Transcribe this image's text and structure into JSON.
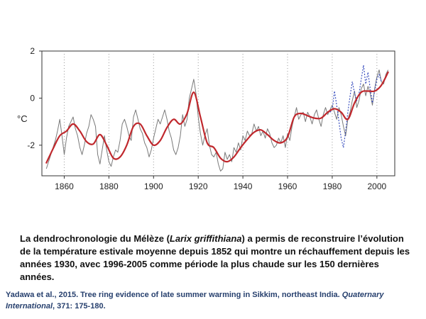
{
  "chart_data": {
    "type": "line",
    "ylabel": "°C",
    "xlim": [
      1850,
      2008
    ],
    "ylim": [
      -3.3,
      2.0
    ],
    "x_ticks": [
      1860,
      1880,
      1900,
      1920,
      1940,
      1960,
      1980,
      2000
    ],
    "x_tick_labels": [
      "1860",
      "1880",
      "1900",
      "1920",
      "1940",
      "1960",
      "1980",
      "2000"
    ],
    "y_ticks": [
      2,
      0,
      -2
    ],
    "y_tick_labels": [
      "2",
      "0",
      "-2"
    ],
    "grid": "vertical dotted",
    "legend": "none",
    "series": [
      {
        "style": "thin-gray",
        "color": "#7a7a7a",
        "x": [
          1852,
          1853,
          1854,
          1855,
          1856,
          1857,
          1858,
          1859,
          1860,
          1861,
          1862,
          1863,
          1864,
          1865,
          1866,
          1867,
          1868,
          1869,
          1870,
          1871,
          1872,
          1873,
          1874,
          1875,
          1876,
          1877,
          1878,
          1879,
          1880,
          1881,
          1882,
          1883,
          1884,
          1885,
          1886,
          1887,
          1888,
          1889,
          1890,
          1891,
          1892,
          1893,
          1894,
          1895,
          1896,
          1897,
          1898,
          1899,
          1900,
          1901,
          1902,
          1903,
          1904,
          1905,
          1906,
          1907,
          1908,
          1909,
          1910,
          1911,
          1912,
          1913,
          1914,
          1915,
          1916,
          1917,
          1918,
          1919,
          1920,
          1921,
          1922,
          1923,
          1924,
          1925,
          1926,
          1927,
          1928,
          1929,
          1930,
          1931,
          1932,
          1933,
          1934,
          1935,
          1936,
          1937,
          1938,
          1939,
          1940,
          1941,
          1942,
          1943,
          1944,
          1945,
          1946,
          1947,
          1948,
          1949,
          1950,
          1951,
          1952,
          1953,
          1954,
          1955,
          1956,
          1957,
          1958,
          1959,
          1960,
          1961,
          1962,
          1963,
          1964,
          1965,
          1966,
          1967,
          1968,
          1969,
          1970,
          1971,
          1972,
          1973,
          1974,
          1975,
          1976,
          1977,
          1978,
          1979,
          1980,
          1981,
          1982,
          1983,
          1984,
          1985,
          1986,
          1987,
          1988,
          1989,
          1990,
          1991,
          1992,
          1993,
          1994,
          1995,
          1996,
          1997,
          1998,
          1999,
          2000,
          2001,
          2002,
          2003,
          2004,
          2005
        ],
        "values": [
          -3.0,
          -2.7,
          -2.4,
          -2.1,
          -1.8,
          -1.4,
          -0.9,
          -1.6,
          -2.4,
          -1.7,
          -1.2,
          -1.0,
          -0.8,
          -1.3,
          -1.6,
          -2.1,
          -2.4,
          -2.0,
          -1.5,
          -1.2,
          -0.7,
          -0.9,
          -1.2,
          -2.4,
          -2.8,
          -2.2,
          -1.6,
          -2.2,
          -2.7,
          -2.9,
          -2.5,
          -2.2,
          -2.3,
          -1.8,
          -1.1,
          -0.9,
          -1.2,
          -1.6,
          -1.8,
          -0.8,
          -0.5,
          -0.9,
          -1.3,
          -1.5,
          -1.9,
          -2.1,
          -2.5,
          -2.2,
          -1.7,
          -1.3,
          -0.9,
          -1.1,
          -0.8,
          -0.5,
          -0.9,
          -1.4,
          -1.7,
          -2.2,
          -2.4,
          -2.1,
          -1.6,
          -0.7,
          -1.2,
          -0.9,
          0.0,
          0.4,
          0.8,
          0.2,
          -0.8,
          -1.5,
          -2.0,
          -1.6,
          -1.3,
          -2.0,
          -2.4,
          -2.5,
          -2.3,
          -2.8,
          -3.1,
          -3.0,
          -2.3,
          -2.6,
          -2.4,
          -2.7,
          -2.1,
          -2.3,
          -1.9,
          -2.2,
          -1.6,
          -1.8,
          -1.4,
          -1.6,
          -1.5,
          -1.1,
          -1.4,
          -1.2,
          -1.6,
          -1.4,
          -1.7,
          -1.3,
          -1.5,
          -1.9,
          -2.1,
          -2.0,
          -1.7,
          -1.9,
          -1.6,
          -2.1,
          -1.5,
          -1.8,
          -1.2,
          -0.8,
          -0.4,
          -0.9,
          -0.7,
          -0.6,
          -1.0,
          -0.6,
          -0.8,
          -1.1,
          -0.7,
          -0.5,
          -0.9,
          -1.2,
          -0.7,
          -0.4,
          -0.7,
          -0.5,
          -0.3,
          -0.6,
          -0.9,
          -0.4,
          -0.7,
          -1.2,
          -1.6,
          -0.9,
          -0.6,
          -0.1,
          0.3,
          -0.4,
          -0.1,
          0.4,
          0.6,
          0.1,
          0.5,
          0.2,
          -0.3,
          0.4,
          0.9,
          1.2,
          0.7,
          0.6,
          1.0,
          1.2
        ],
        "name": ""
      },
      {
        "style": "dotted-blue",
        "color": "#3a4fbf",
        "x": [
          1979,
          1980,
          1981,
          1982,
          1983,
          1984,
          1985,
          1986,
          1987,
          1988,
          1989,
          1990,
          1991,
          1992,
          1993,
          1994,
          1995,
          1996,
          1997,
          1998,
          1999,
          2000,
          2001,
          2002
        ],
        "values": [
          -0.6,
          -0.5,
          0.3,
          -0.3,
          -1.0,
          -1.7,
          -2.1,
          -1.4,
          -0.6,
          0.1,
          0.7,
          0.2,
          -0.1,
          0.2,
          0.8,
          1.4,
          0.6,
          1.1,
          0.4,
          -0.2,
          0.3,
          0.8,
          1.0,
          0.7
        ],
        "name": ""
      },
      {
        "style": "thick-smoothed",
        "color": "#c0282d",
        "x": [
          1852,
          1855,
          1858,
          1861,
          1864,
          1867,
          1870,
          1873,
          1876,
          1879,
          1882,
          1885,
          1888,
          1891,
          1894,
          1897,
          1900,
          1903,
          1906,
          1909,
          1912,
          1915,
          1918,
          1921,
          1924,
          1927,
          1930,
          1933,
          1936,
          1939,
          1942,
          1945,
          1948,
          1951,
          1954,
          1957,
          1960,
          1963,
          1966,
          1969,
          1972,
          1975,
          1978,
          1981,
          1984,
          1987,
          1990,
          1993,
          1996,
          1999,
          2002,
          2005
        ],
        "values": [
          -2.75,
          -2.15,
          -1.6,
          -1.4,
          -1.1,
          -1.4,
          -1.85,
          -1.95,
          -1.55,
          -2.0,
          -2.55,
          -2.5,
          -2.0,
          -1.2,
          -1.1,
          -1.6,
          -2.0,
          -1.8,
          -1.25,
          -0.9,
          -1.1,
          -0.65,
          0.25,
          -0.8,
          -1.9,
          -2.1,
          -2.55,
          -2.7,
          -2.5,
          -2.1,
          -1.75,
          -1.45,
          -1.35,
          -1.55,
          -1.8,
          -1.9,
          -1.65,
          -0.8,
          -0.65,
          -0.75,
          -0.85,
          -0.85,
          -0.6,
          -0.45,
          -0.6,
          -0.9,
          -0.2,
          0.25,
          0.3,
          0.3,
          0.55,
          1.1
        ],
        "name": ""
      }
    ]
  },
  "caption": {
    "part1": "La dendrochronologie du Mélèze (",
    "species": "Larix griffithiana",
    "part2": ") a permis de reconstruire l’évolution de la température estivale moyenne depuis 1852 qui montre un réchauffement depuis les années 1930, avec 1996-2005 comme période la plus chaude sur les 150 dernières années."
  },
  "citation": {
    "authors": "Yadawa et al., 2015. Tree ring evidence of late summer warming in Sikkim, northeast  India. ",
    "journal": "Quaternary International",
    "rest": ", 371: 175-180."
  }
}
